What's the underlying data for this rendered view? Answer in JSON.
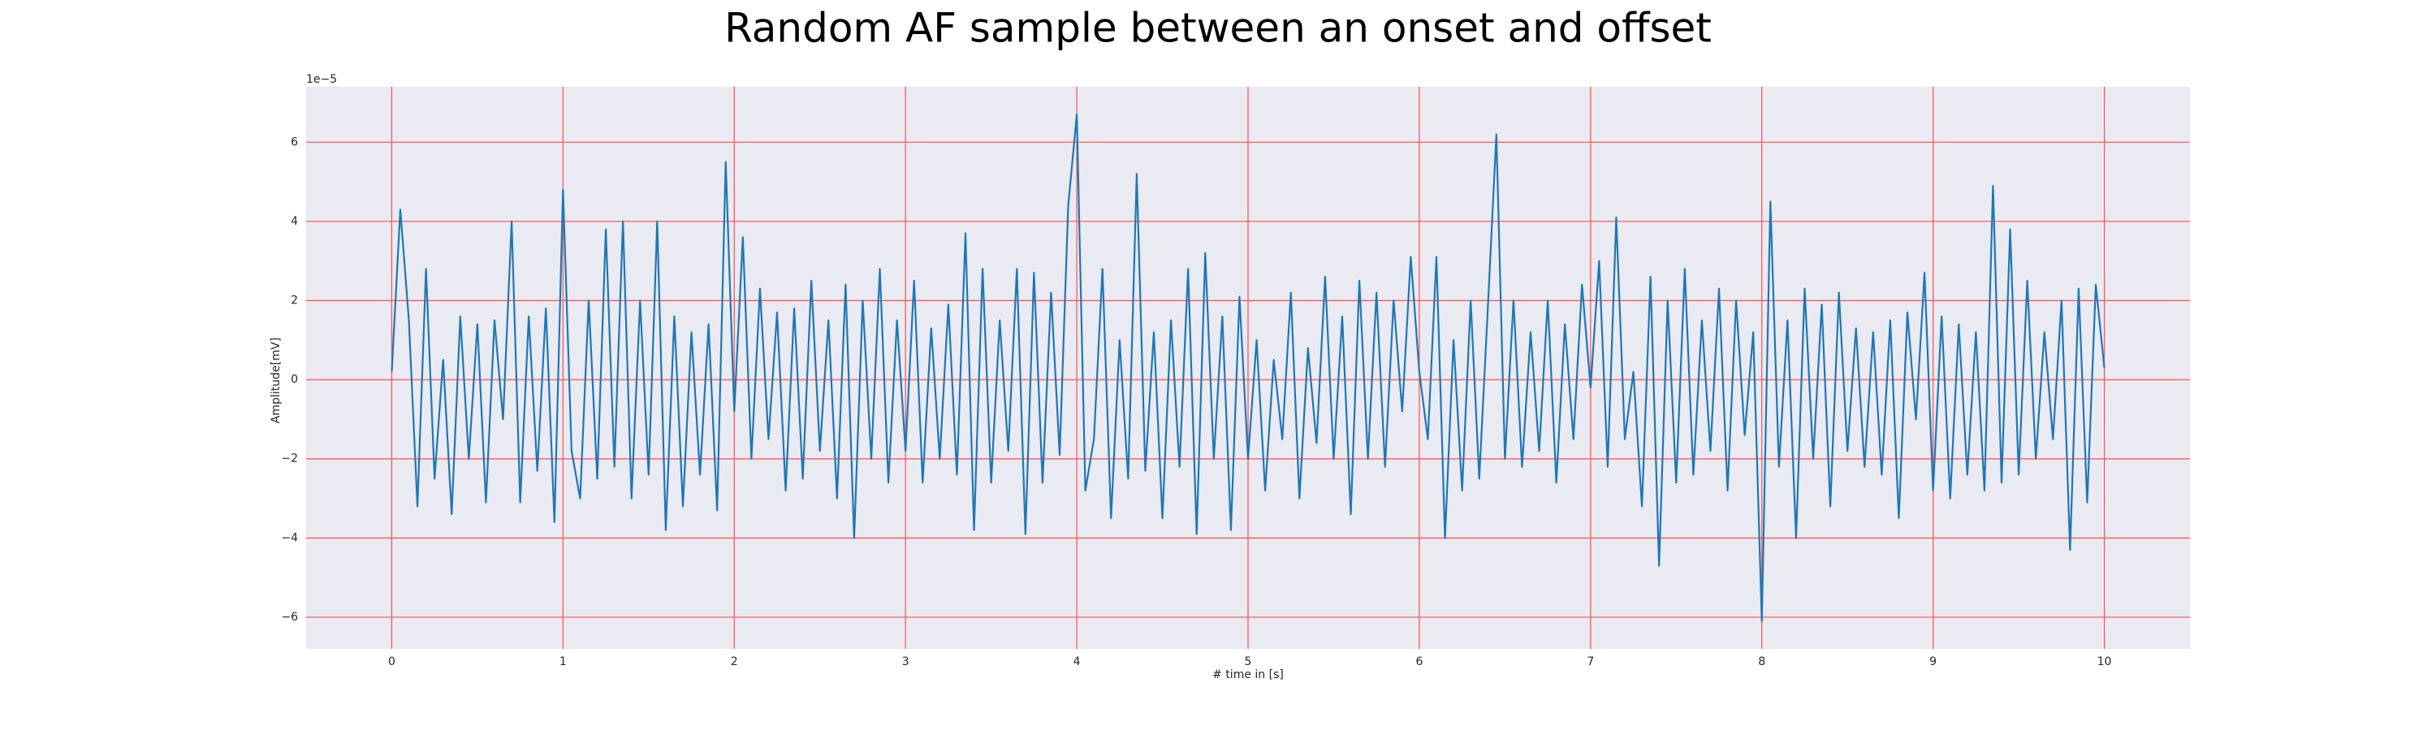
{
  "chart_data": {
    "type": "line",
    "title": "Random AF sample between an onset and offset",
    "xlabel": "# time in [s]",
    "ylabel": "Amplitude[mV]",
    "y_offset_text": "1e−5",
    "x": [
      0,
      0.05,
      0.1,
      0.15,
      0.2,
      0.25,
      0.3,
      0.35,
      0.4,
      0.45,
      0.5,
      0.55,
      0.6,
      0.65,
      0.7,
      0.75,
      0.8,
      0.85,
      0.9,
      0.95,
      1,
      1.05,
      1.1,
      1.15,
      1.2,
      1.25,
      1.3,
      1.35,
      1.4,
      1.45,
      1.5,
      1.55,
      1.6,
      1.65,
      1.7,
      1.75,
      1.8,
      1.85,
      1.9,
      1.95,
      2,
      2.05,
      2.1,
      2.15,
      2.2,
      2.25,
      2.3,
      2.35,
      2.4,
      2.45,
      2.5,
      2.55,
      2.6,
      2.65,
      2.7,
      2.75,
      2.8,
      2.85,
      2.9,
      2.95,
      3,
      3.05,
      3.1,
      3.15,
      3.2,
      3.25,
      3.3,
      3.35,
      3.4,
      3.45,
      3.5,
      3.55,
      3.6,
      3.65,
      3.7,
      3.75,
      3.8,
      3.85,
      3.9,
      3.95,
      4,
      4.05,
      4.1,
      4.15,
      4.2,
      4.25,
      4.3,
      4.35,
      4.4,
      4.45,
      4.5,
      4.55,
      4.6,
      4.65,
      4.7,
      4.75,
      4.8,
      4.85,
      4.9,
      4.95,
      5,
      5.05,
      5.1,
      5.15,
      5.2,
      5.25,
      5.3,
      5.35,
      5.4,
      5.45,
      5.5,
      5.55,
      5.6,
      5.65,
      5.7,
      5.75,
      5.8,
      5.85,
      5.9,
      5.95,
      6,
      6.05,
      6.1,
      6.15,
      6.2,
      6.25,
      6.3,
      6.35,
      6.4,
      6.45,
      6.5,
      6.55,
      6.6,
      6.65,
      6.7,
      6.75,
      6.8,
      6.85,
      6.9,
      6.95,
      7,
      7.05,
      7.1,
      7.15,
      7.2,
      7.25,
      7.3,
      7.35,
      7.4,
      7.45,
      7.5,
      7.55,
      7.6,
      7.65,
      7.7,
      7.75,
      7.8,
      7.85,
      7.9,
      7.95,
      8,
      8.05,
      8.1,
      8.15,
      8.2,
      8.25,
      8.3,
      8.35,
      8.4,
      8.45,
      8.5,
      8.55,
      8.6,
      8.65,
      8.7,
      8.75,
      8.8,
      8.85,
      8.9,
      8.95,
      9,
      9.05,
      9.1,
      9.15,
      9.2,
      9.25,
      9.3,
      9.35,
      9.4,
      9.45,
      9.5,
      9.55,
      9.6,
      9.65,
      9.7,
      9.75,
      9.8,
      9.85,
      9.9,
      9.95,
      10
    ],
    "values": [
      0.2,
      4.3,
      1.5,
      -3.2,
      2.8,
      -2.5,
      0.5,
      -3.4,
      1.6,
      -2.0,
      1.4,
      -3.1,
      1.5,
      -1.0,
      4.0,
      -3.1,
      1.6,
      -2.3,
      1.8,
      -3.6,
      4.8,
      -1.8,
      -3.0,
      2.0,
      -2.5,
      3.8,
      -2.2,
      4.0,
      -3.0,
      2.0,
      -2.4,
      4.0,
      -3.8,
      1.6,
      -3.2,
      1.2,
      -2.4,
      1.4,
      -3.3,
      5.5,
      -0.8,
      3.6,
      -2.0,
      2.3,
      -1.5,
      1.7,
      -2.8,
      1.8,
      -2.5,
      2.5,
      -1.8,
      1.5,
      -3.0,
      2.4,
      -4.0,
      2.0,
      -2.0,
      2.8,
      -2.6,
      1.5,
      -1.8,
      2.5,
      -2.6,
      1.3,
      -2.0,
      1.9,
      -2.4,
      3.7,
      -3.8,
      2.8,
      -2.6,
      1.5,
      -1.8,
      2.8,
      -3.9,
      2.7,
      -2.6,
      2.2,
      -1.9,
      4.4,
      6.7,
      -2.8,
      -1.5,
      2.8,
      -3.5,
      1.0,
      -2.5,
      5.2,
      -2.3,
      1.2,
      -3.5,
      1.5,
      -2.2,
      2.8,
      -3.9,
      3.2,
      -2.0,
      1.6,
      -3.8,
      2.1,
      -2.0,
      1.0,
      -2.8,
      0.5,
      -1.5,
      2.2,
      -3.0,
      0.8,
      -1.6,
      2.6,
      -2.0,
      1.6,
      -3.4,
      2.5,
      -2.0,
      2.2,
      -2.2,
      2.0,
      -0.8,
      3.1,
      0.2,
      -1.5,
      3.1,
      -4.0,
      1.0,
      -2.8,
      2.0,
      -2.5,
      1.8,
      6.2,
      -2.0,
      2.0,
      -2.2,
      1.2,
      -1.8,
      2.0,
      -2.6,
      1.4,
      -1.5,
      2.4,
      -0.2,
      3.0,
      -2.2,
      4.1,
      -1.5,
      0.2,
      -3.2,
      2.6,
      -4.7,
      2.0,
      -2.6,
      2.8,
      -2.4,
      1.5,
      -1.8,
      2.3,
      -2.8,
      2.0,
      -1.4,
      1.2,
      -6.1,
      4.5,
      -2.2,
      1.5,
      -4.0,
      2.3,
      -2.0,
      1.9,
      -3.2,
      2.2,
      -1.8,
      1.3,
      -2.2,
      1.2,
      -2.4,
      1.5,
      -3.5,
      1.7,
      -1.0,
      2.7,
      -2.8,
      1.6,
      -3.0,
      1.4,
      -2.4,
      1.2,
      -2.8,
      4.9,
      -2.6,
      3.8,
      -2.4,
      2.5,
      -2.0,
      1.2,
      -1.5,
      2.0,
      -4.3,
      2.3,
      -3.1,
      2.4,
      0.3
    ],
    "color": "#1f77b4",
    "xlim": [
      -0.5,
      10.5
    ],
    "xticks": [
      0,
      1,
      2,
      3,
      4,
      5,
      6,
      7,
      8,
      9,
      10
    ],
    "ylim": [
      -6.8,
      7.4
    ],
    "yticks": [
      {
        "value": -6,
        "label": "−6"
      },
      {
        "value": -4,
        "label": "−4"
      },
      {
        "value": -2,
        "label": "−2"
      },
      0,
      2,
      4,
      6
    ],
    "grid": true,
    "grid_color": "#ff4d4d",
    "background": "#eaeaf2"
  }
}
